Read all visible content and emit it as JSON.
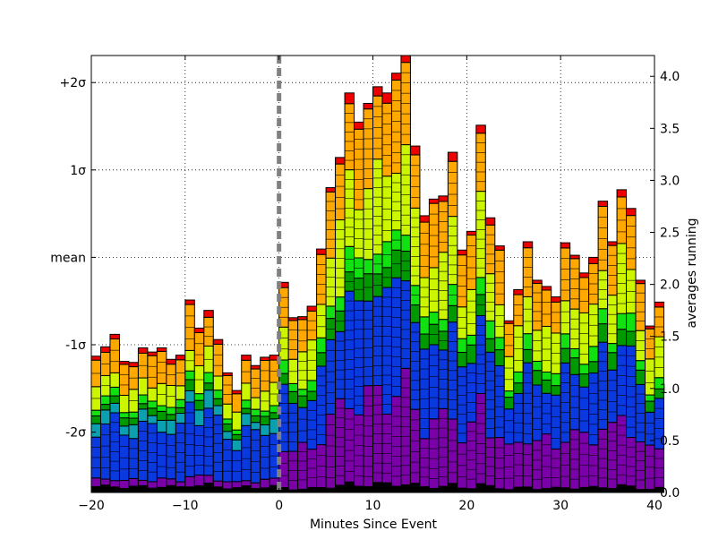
{
  "chart_data": {
    "type": "bar",
    "stacked": true,
    "xlabel": "Minutes Since Event",
    "ylabel_right": "averages running",
    "x_range": [
      -20,
      40
    ],
    "x_ticks": [
      -20,
      -10,
      0,
      10,
      20,
      30,
      40
    ],
    "x_tick_labels": [
      "−20",
      "−10",
      "0",
      "10",
      "20",
      "30",
      "40"
    ],
    "y_right_range": [
      0,
      4.2
    ],
    "y_right_ticks": [
      0.0,
      0.5,
      1.0,
      1.5,
      2.0,
      2.5,
      3.0,
      3.5,
      4.0
    ],
    "y_right_tick_labels": [
      "0.0",
      "0.5",
      "1.0",
      "1.5",
      "2.0",
      "2.5",
      "3.0",
      "3.5",
      "4.0"
    ],
    "y_left_ticks": [
      {
        "label": "-2σ",
        "value": 0.58
      },
      {
        "label": "-1σ",
        "value": 1.42
      },
      {
        "label": "mean",
        "value": 2.26
      },
      {
        "label": "1σ",
        "value": 3.1
      },
      {
        "label": "+2σ",
        "value": 3.94
      }
    ],
    "grid": true,
    "event_line_x": 0,
    "bin_width": 1,
    "x_start": -20,
    "totals": [
      1.31,
      1.4,
      1.52,
      1.26,
      1.25,
      1.39,
      1.35,
      1.39,
      1.28,
      1.32,
      1.85,
      1.58,
      1.75,
      1.47,
      1.15,
      0.98,
      1.32,
      1.22,
      1.3,
      1.32,
      2.02,
      1.68,
      1.69,
      1.79,
      2.34,
      2.93,
      3.22,
      3.84,
      3.56,
      3.74,
      3.9,
      3.84,
      4.03,
      4.2,
      3.33,
      2.66,
      2.82,
      2.85,
      3.27,
      2.33,
      2.51,
      3.53,
      2.64,
      2.37,
      1.65,
      1.95,
      2.41,
      2.04,
      1.98,
      1.88,
      2.4,
      2.28,
      2.11,
      2.26,
      2.8,
      2.41,
      2.91,
      2.73,
      2.04,
      1.6,
      1.83
    ],
    "series": [
      {
        "name": "",
        "color": "#000000"
      },
      {
        "name": "",
        "color": "#7a00a8"
      },
      {
        "name": "",
        "color": "#0a39e0"
      },
      {
        "name": "",
        "color": "#0aa0b0"
      },
      {
        "name": "",
        "color": "#009900"
      },
      {
        "name": "",
        "color": "#11e011"
      },
      {
        "name": "",
        "color": "#ccf500"
      },
      {
        "name": "",
        "color": "#ffa800"
      },
      {
        "name": "",
        "color": "#ee0000"
      }
    ],
    "proportions_early": [
      0.04,
      0.05,
      0.37,
      0.08,
      0.05,
      0.05,
      0.13,
      0.2,
      0.03
    ],
    "proportions_late": [
      0.02,
      0.22,
      0.26,
      0.0,
      0.06,
      0.05,
      0.18,
      0.19,
      0.02
    ]
  }
}
